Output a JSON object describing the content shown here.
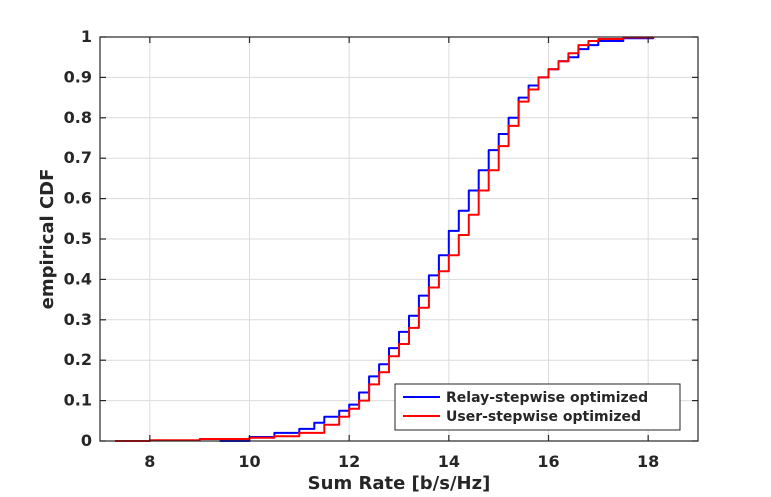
{
  "chart_data": {
    "type": "line",
    "title": "",
    "xlabel": "Sum Rate [b/s/Hz]",
    "ylabel": "empirical CDF",
    "xlim": [
      7,
      19
    ],
    "ylim": [
      0,
      1
    ],
    "xticks": [
      "8",
      "10",
      "12",
      "14",
      "16",
      "18"
    ],
    "yticks": [
      "0",
      "0.1",
      "0.2",
      "0.3",
      "0.4",
      "0.5",
      "0.6",
      "0.7",
      "0.8",
      "0.9",
      "1"
    ],
    "grid": true,
    "legend_position": "bottom-right",
    "series": [
      {
        "name": "Relay-stepwise optimized",
        "color": "#0000ff",
        "x": [
          9.4,
          10.0,
          10.5,
          11.0,
          11.3,
          11.5,
          11.8,
          12.0,
          12.2,
          12.4,
          12.6,
          12.8,
          13.0,
          13.2,
          13.4,
          13.6,
          13.8,
          14.0,
          14.2,
          14.4,
          14.6,
          14.8,
          15.0,
          15.2,
          15.4,
          15.6,
          15.8,
          16.0,
          16.2,
          16.4,
          16.6,
          16.8,
          17.0,
          17.5,
          18.1
        ],
        "y": [
          0.0,
          0.01,
          0.02,
          0.03,
          0.045,
          0.06,
          0.075,
          0.09,
          0.12,
          0.16,
          0.19,
          0.23,
          0.27,
          0.31,
          0.36,
          0.41,
          0.46,
          0.52,
          0.57,
          0.62,
          0.67,
          0.72,
          0.76,
          0.8,
          0.85,
          0.88,
          0.9,
          0.92,
          0.94,
          0.95,
          0.97,
          0.98,
          0.99,
          0.997,
          1.0
        ]
      },
      {
        "name": "User-stepwise optimized",
        "color": "#ff0000",
        "x": [
          7.3,
          8.0,
          9.0,
          10.0,
          10.5,
          11.0,
          11.5,
          11.8,
          12.0,
          12.2,
          12.4,
          12.6,
          12.8,
          13.0,
          13.2,
          13.4,
          13.6,
          13.8,
          14.0,
          14.2,
          14.4,
          14.6,
          14.8,
          15.0,
          15.2,
          15.4,
          15.6,
          15.8,
          16.0,
          16.2,
          16.4,
          16.6,
          16.8,
          17.0,
          17.5,
          18.1
        ],
        "y": [
          0.0,
          0.002,
          0.005,
          0.008,
          0.012,
          0.02,
          0.04,
          0.06,
          0.08,
          0.1,
          0.14,
          0.17,
          0.21,
          0.24,
          0.28,
          0.33,
          0.38,
          0.42,
          0.46,
          0.51,
          0.56,
          0.62,
          0.67,
          0.73,
          0.78,
          0.84,
          0.87,
          0.9,
          0.92,
          0.94,
          0.96,
          0.98,
          0.99,
          0.995,
          0.999,
          1.0
        ]
      }
    ]
  }
}
